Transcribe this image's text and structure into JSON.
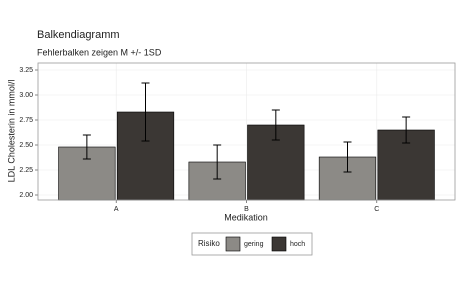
{
  "chart_data": {
    "type": "bar",
    "title": "Balkendiagramm",
    "subtitle": "Fehlerbalken zeigen M +/- 1SD",
    "x_label": "Medikation",
    "y_label": "LDL Cholesterin in mmol/l",
    "categories": [
      "A",
      "B",
      "C"
    ],
    "series": [
      {
        "name": "gering",
        "color": "#8c8a86",
        "values": [
          2.48,
          2.33,
          2.38
        ],
        "errors": [
          0.12,
          0.17,
          0.15
        ]
      },
      {
        "name": "hoch",
        "color": "#3b3734",
        "values": [
          2.83,
          2.7,
          2.65
        ],
        "errors": [
          0.29,
          0.15,
          0.13
        ]
      }
    ],
    "legend_title": "Risiko",
    "legend_position": "bottom",
    "ylim": [
      1.95,
      3.32
    ],
    "yticks": [
      {
        "value": 2,
        "label": "2.00"
      },
      {
        "value": 2.25,
        "label": "2.25"
      },
      {
        "value": 2.5,
        "label": "2.50"
      },
      {
        "value": 2.75,
        "label": "2.75"
      },
      {
        "value": 3,
        "label": "3.00"
      },
      {
        "value": 3.25,
        "label": "3.25"
      }
    ],
    "grid": true
  }
}
